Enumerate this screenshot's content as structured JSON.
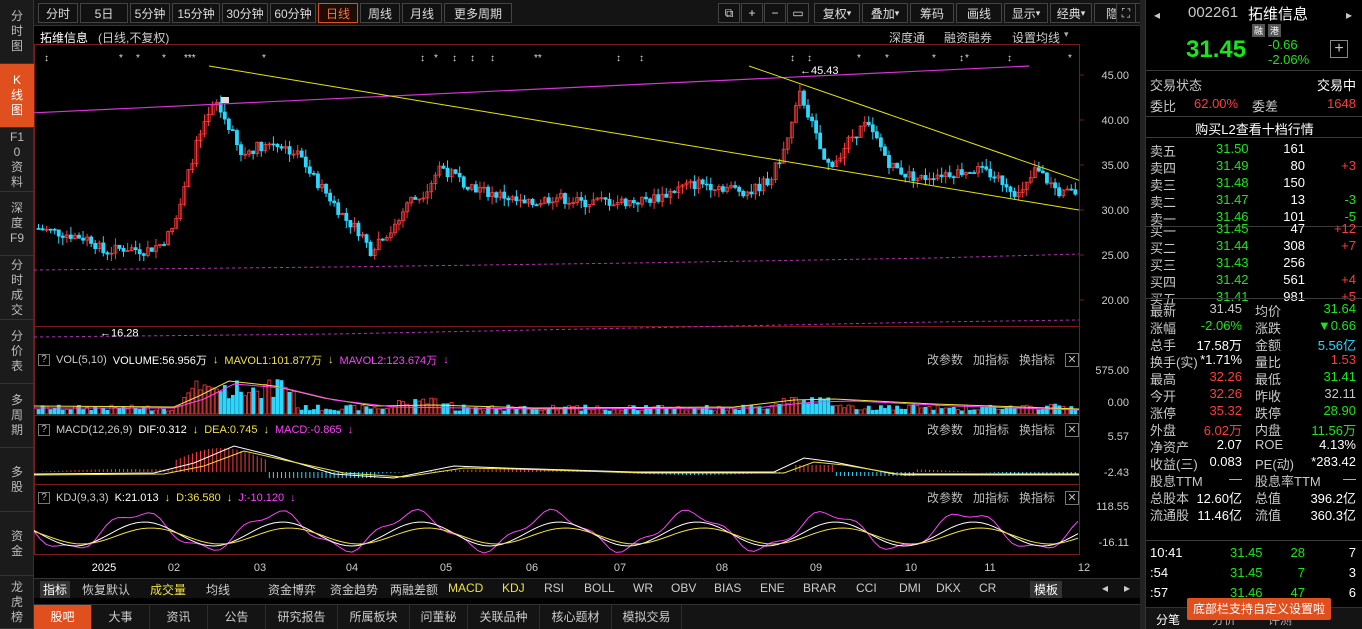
{
  "left_nav": [
    "分时图",
    "K线图",
    "F10资料",
    "深度F9",
    "分时成交",
    "分价表",
    "多周期",
    "多股",
    "资金",
    "龙虎榜"
  ],
  "toolbar": {
    "periods": [
      "分时",
      "5日",
      "5分钟",
      "15分钟",
      "30分钟",
      "60分钟",
      "日线",
      "周线",
      "月线",
      "更多周期"
    ],
    "active_period": "日线",
    "icons": [
      "⧉",
      "+",
      "−",
      "▭"
    ],
    "actions": [
      "复权",
      "叠加",
      "筹码",
      "画线",
      "显示",
      "经典",
      "隐藏"
    ]
  },
  "stock": {
    "name": "拓维信息",
    "sub": "(日线,不复权)",
    "header_links": [
      "深度通",
      "融资融券",
      "设置均线"
    ]
  },
  "annotations": {
    "high": "←45.43",
    "low": "←16.28"
  },
  "price_axis": [
    "45.00",
    "40.00",
    "35.00",
    "30.00",
    "25.00",
    "20.00"
  ],
  "vol_pane": {
    "title": "VOL(5,10)",
    "vol": "VOLUME:56.956万",
    "ma1": "MAVOL1:101.877万",
    "ma2": "MAVOL2:123.674万",
    "axis": [
      "575.00",
      "0.00"
    ]
  },
  "macd_pane": {
    "title": "MACD(12,26,9)",
    "dif": "DIF:0.312",
    "dea": "DEA:0.745",
    "macd": "MACD:-0.865",
    "axis": [
      "5.57",
      "-2.43"
    ]
  },
  "kdj_pane": {
    "title": "KDJ(9,3,3)",
    "k": "K:21.013",
    "d": "D:36.580",
    "j": "J:-10.120",
    "axis": [
      "118.55",
      "-16.11"
    ]
  },
  "pane_tools": [
    "改参数",
    "加指标",
    "换指标"
  ],
  "x_axis": [
    "2025",
    "02",
    "03",
    "04",
    "05",
    "06",
    "07",
    "08",
    "09",
    "10",
    "11",
    "12"
  ],
  "indicator_tabs": [
    "指标",
    "恢复默认",
    "成交量",
    "均线",
    "资金博弈",
    "资金趋势",
    "两融差额",
    "MACD",
    "KDJ",
    "RSI",
    "BOLL",
    "WR",
    "OBV",
    "BIAS",
    "ENE",
    "BRAR",
    "CCI",
    "DMI",
    "DKX",
    "CR",
    "模板"
  ],
  "bottom_tabs": [
    "股吧",
    "大事",
    "资讯",
    "公告",
    "研究报告",
    "所属板块",
    "问董秘",
    "关联品种",
    "核心题材",
    "模拟交易"
  ],
  "quote": {
    "code": "002261",
    "name": "拓维信息",
    "tags": [
      "融",
      "港"
    ],
    "price": "31.45",
    "change": "-0.66",
    "pct": "-2.06%",
    "status_label": "交易状态",
    "status": "交易中",
    "wb_label": "委比",
    "wb": "62.00%",
    "wc_label": "委差",
    "wc": "1648",
    "l2": "购买L2查看十档行情",
    "asks": [
      [
        "卖五",
        "31.50",
        "161",
        ""
      ],
      [
        "卖四",
        "31.49",
        "80",
        "+3"
      ],
      [
        "卖三",
        "31.48",
        "150",
        ""
      ],
      [
        "卖二",
        "31.47",
        "13",
        "-3"
      ],
      [
        "卖一",
        "31.46",
        "101",
        "-5"
      ]
    ],
    "bids": [
      [
        "买一",
        "31.45",
        "47",
        "+12"
      ],
      [
        "买二",
        "31.44",
        "308",
        "+7"
      ],
      [
        "买三",
        "31.43",
        "256",
        ""
      ],
      [
        "买四",
        "31.42",
        "561",
        "+4"
      ],
      [
        "买五",
        "31.41",
        "981",
        "+5"
      ]
    ],
    "stats": [
      [
        "最新",
        "31.45",
        "均价",
        "31.64"
      ],
      [
        "涨幅",
        "-2.06%",
        "涨跌",
        "▼0.66"
      ],
      [
        "总手",
        "17.58万",
        "金额",
        "5.56亿"
      ],
      [
        "换手(实)",
        "*1.71%",
        "量比",
        "1.53"
      ],
      [
        "最高",
        "32.26",
        "最低",
        "31.41"
      ],
      [
        "今开",
        "32.26",
        "昨收",
        "32.11"
      ],
      [
        "涨停",
        "35.32",
        "跌停",
        "28.90"
      ],
      [
        "外盘",
        "6.02万",
        "内盘",
        "11.56万"
      ],
      [
        "净资产",
        "2.07",
        "ROE",
        "4.13%"
      ],
      [
        "收益(三)",
        "0.083",
        "PE(动)",
        "*283.42"
      ],
      [
        "股息TTM",
        "—",
        "股息率TTM",
        "—"
      ],
      [
        "总股本",
        "12.60亿",
        "总值",
        "396.2亿"
      ],
      [
        "流通股",
        "11.46亿",
        "流值",
        "360.3亿"
      ]
    ],
    "ticks": [
      [
        "10:41",
        "31.45",
        "28",
        "7"
      ],
      [
        ":54",
        "31.45",
        "7",
        "3"
      ],
      [
        ":57",
        "31.46",
        "47",
        "6"
      ]
    ],
    "tab_left": "分笔",
    "tab_mid": "分价",
    "tab_right": "评测"
  },
  "toast": "底部栏支持自定义设置啦",
  "colors": {
    "up": "#ff3b3b",
    "down": "#2ad8ff",
    "accent": "#e0501f",
    "trend_yellow": "#e6e600",
    "trend_magenta": "#d633d6"
  }
}
